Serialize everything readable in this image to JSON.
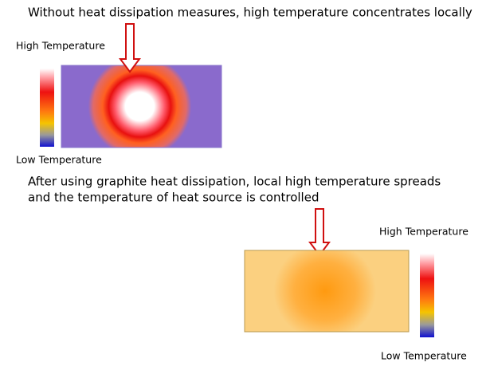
{
  "top_panel": {
    "caption": "Without heat dissipation measures, high temperature concentrates locally",
    "scale_high": "High Temperature",
    "scale_low": "Low Temperature"
  },
  "bottom_panel": {
    "caption_lines": [
      "After using graphite heat dissipation, local high temperature spreads",
      "and the temperature of heat source is controlled"
    ],
    "scale_high": "High Temperature",
    "scale_low": "Low Temperature"
  }
}
